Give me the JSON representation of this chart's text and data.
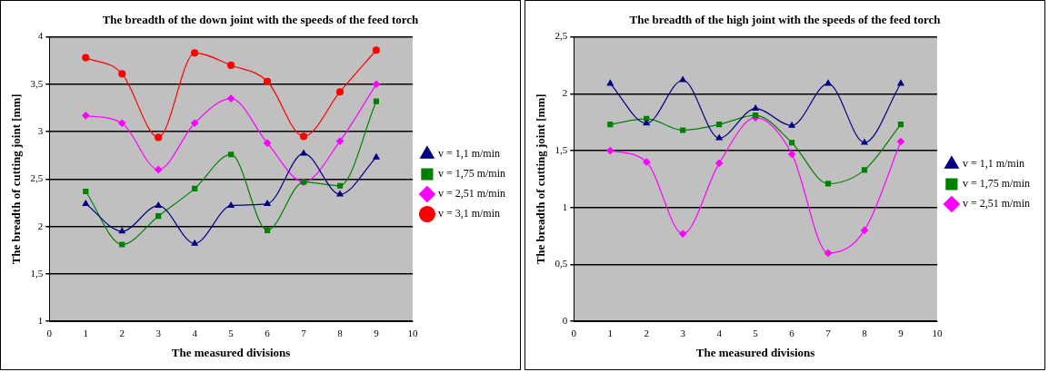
{
  "chart_data": [
    {
      "type": "line",
      "title": "The breadth of the down joint with the speeds of the feed torch",
      "xlabel": "The measured divisions",
      "ylabel": "The breadth of cutting joint [mm]",
      "x": [
        1,
        2,
        3,
        4,
        5,
        6,
        7,
        8,
        9
      ],
      "xlim": [
        0,
        10
      ],
      "xticks": [
        0,
        1,
        2,
        3,
        {
          "value": 4,
          "label": "4"
        },
        5,
        6,
        7,
        8,
        9,
        10
      ],
      "ylim": [
        1,
        4
      ],
      "yticks": [
        1,
        {
          "value": 1.5,
          "label": "1,5"
        },
        2,
        {
          "value": 2.5,
          "label": "2,5"
        },
        3,
        {
          "value": 3.5,
          "label": "3,5"
        },
        4
      ],
      "grid": "y",
      "legend": "right",
      "series": [
        {
          "name": "v = 1,1 m/min",
          "color": "#000080",
          "marker": "triangle",
          "values": [
            2.24,
            1.95,
            2.22,
            1.82,
            2.22,
            2.24,
            2.77,
            2.34,
            2.73
          ]
        },
        {
          "name": "v = 1,75 m/min",
          "color": "#008000",
          "marker": "square",
          "values": [
            2.37,
            1.81,
            2.11,
            2.4,
            2.76,
            1.96,
            2.47,
            2.43,
            3.32
          ]
        },
        {
          "name": "v = 2,51 m/min",
          "color": "#ff00ff",
          "marker": "diamond",
          "values": [
            3.17,
            3.09,
            2.6,
            3.09,
            3.35,
            2.88,
            2.47,
            2.9,
            3.5
          ]
        },
        {
          "name": "v = 3,1 m/min",
          "color": "#ff0000",
          "marker": "circle",
          "values": [
            3.78,
            3.61,
            2.94,
            3.83,
            3.7,
            3.53,
            2.95,
            3.42,
            3.86
          ]
        }
      ]
    },
    {
      "type": "line",
      "title": "The breadth of the high joint with the speeds of the feed torch",
      "xlabel": "The measured divisions",
      "ylabel": "The breadth of cutting joint [mm]",
      "x": [
        1,
        2,
        3,
        4,
        5,
        6,
        7,
        8,
        9
      ],
      "xlim": [
        0,
        10
      ],
      "xticks": [
        0,
        1,
        2,
        3,
        {
          "value": 4,
          "label": "4"
        },
        5,
        6,
        7,
        8,
        9,
        10
      ],
      "ylim": [
        0,
        2.5
      ],
      "yticks": [
        0,
        {
          "value": 0.5,
          "label": "0,5"
        },
        1,
        {
          "value": 1.5,
          "label": "1,5"
        },
        2,
        {
          "value": 2.5,
          "label": "2,5"
        }
      ],
      "grid": "y",
      "legend": "right",
      "series": [
        {
          "name": "v = 1,1 m/min",
          "color": "#000080",
          "marker": "triangle",
          "values": [
            2.09,
            1.74,
            2.12,
            1.61,
            1.87,
            1.72,
            2.09,
            1.57,
            2.09
          ]
        },
        {
          "name": "v = 1,75 m/min",
          "color": "#008000",
          "marker": "square",
          "values": [
            1.73,
            1.78,
            1.68,
            1.73,
            1.81,
            1.57,
            1.21,
            1.33,
            1.73
          ]
        },
        {
          "name": "v = 2,51 m/min",
          "color": "#ff00ff",
          "marker": "diamond",
          "values": [
            1.5,
            1.4,
            0.77,
            1.39,
            1.79,
            1.47,
            0.6,
            0.8,
            1.58
          ]
        }
      ]
    }
  ]
}
